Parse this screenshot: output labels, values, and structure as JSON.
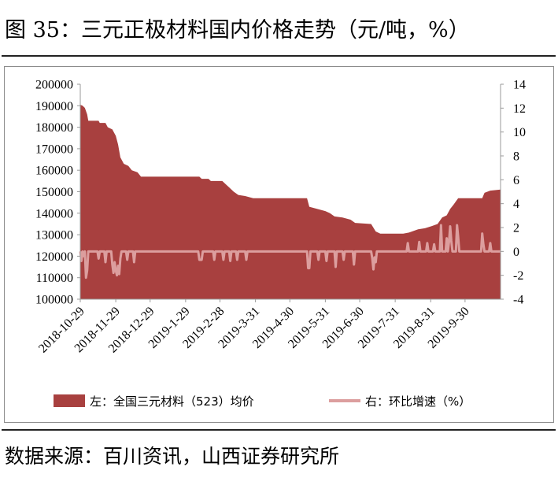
{
  "figure": {
    "title": "图 35：三元正极材料国内价格走势（元/吨，%）",
    "source": "数据来源：百川资讯，山西证券研究所"
  },
  "colors": {
    "price_fill": "#a8403f",
    "growth_line": "#dc9e9e",
    "axis": "#9a9a9a"
  },
  "chart_data": {
    "type": "area",
    "x_tick_labels": [
      "2018-10-29",
      "2018-11-29",
      "2018-12-29",
      "2019-1-29",
      "2019-2-28",
      "2019-3-31",
      "2019-4-30",
      "2019-5-31",
      "2019-6-30",
      "2019-7-31",
      "2019-8-31",
      "2019-9-30"
    ],
    "x_range": [
      "2018-10-29",
      "2019-10-31"
    ],
    "y_left": {
      "ylim": [
        100000,
        200000
      ],
      "ticks": [
        "100000",
        "110000",
        "120000",
        "130000",
        "140000",
        "150000",
        "160000",
        "170000",
        "180000",
        "190000",
        "200000"
      ]
    },
    "y_right": {
      "ylim": [
        -4,
        14
      ],
      "ticks": [
        "-4",
        "-2",
        "0",
        "2",
        "4",
        "6",
        "8",
        "10",
        "12",
        "14"
      ]
    },
    "legend_position": "bottom",
    "grid": false,
    "series": [
      {
        "name": "左：全国三元材料（523）均价",
        "axis": "left",
        "type": "area",
        "points": [
          [
            "2018-10-29",
            190500
          ],
          [
            "2018-10-31",
            190000
          ],
          [
            "2018-11-02",
            189000
          ],
          [
            "2018-11-04",
            186000
          ],
          [
            "2018-11-05",
            183000
          ],
          [
            "2018-11-14",
            183000
          ],
          [
            "2018-11-15",
            182000
          ],
          [
            "2018-11-20",
            182000
          ],
          [
            "2018-11-22",
            180000
          ],
          [
            "2018-11-26",
            179000
          ],
          [
            "2018-11-29",
            176000
          ],
          [
            "2018-12-01",
            172000
          ],
          [
            "2018-12-03",
            166000
          ],
          [
            "2018-12-06",
            163000
          ],
          [
            "2018-12-10",
            162000
          ],
          [
            "2018-12-13",
            160000
          ],
          [
            "2018-12-18",
            159000
          ],
          [
            "2018-12-21",
            157000
          ],
          [
            "2019-02-10",
            157000
          ],
          [
            "2019-02-12",
            156000
          ],
          [
            "2019-02-18",
            156000
          ],
          [
            "2019-02-20",
            155000
          ],
          [
            "2019-03-02",
            155000
          ],
          [
            "2019-03-04",
            154000
          ],
          [
            "2019-03-08",
            152000
          ],
          [
            "2019-03-12",
            150000
          ],
          [
            "2019-03-16",
            148500
          ],
          [
            "2019-03-22",
            148000
          ],
          [
            "2019-03-29",
            147000
          ],
          [
            "2019-05-15",
            147000
          ],
          [
            "2019-05-17",
            143000
          ],
          [
            "2019-05-24",
            142000
          ],
          [
            "2019-05-31",
            141000
          ],
          [
            "2019-06-04",
            140000
          ],
          [
            "2019-06-08",
            138500
          ],
          [
            "2019-06-15",
            138000
          ],
          [
            "2019-06-22",
            137000
          ],
          [
            "2019-06-26",
            135500
          ],
          [
            "2019-07-10",
            135000
          ],
          [
            "2019-07-14",
            131500
          ],
          [
            "2019-07-18",
            130500
          ],
          [
            "2019-08-07",
            130500
          ],
          [
            "2019-08-12",
            131000
          ],
          [
            "2019-08-20",
            132500
          ],
          [
            "2019-08-26",
            133000
          ],
          [
            "2019-09-01",
            134000
          ],
          [
            "2019-09-06",
            135000
          ],
          [
            "2019-09-10",
            138000
          ],
          [
            "2019-09-14",
            139000
          ],
          [
            "2019-09-17",
            142000
          ],
          [
            "2019-09-20",
            144000
          ],
          [
            "2019-09-24",
            147000
          ],
          [
            "2019-10-15",
            147000
          ],
          [
            "2019-10-17",
            149500
          ],
          [
            "2019-10-22",
            150500
          ],
          [
            "2019-10-31",
            151000
          ]
        ]
      },
      {
        "name": "右：环比增速（%）",
        "axis": "right",
        "type": "line",
        "points": [
          [
            "2018-10-29",
            0
          ],
          [
            "2018-10-30",
            -0.8
          ],
          [
            "2018-10-31",
            0
          ],
          [
            "2018-11-01",
            -0.4
          ],
          [
            "2018-11-02",
            0
          ],
          [
            "2018-11-03",
            -2.2
          ],
          [
            "2018-11-04",
            -1.6
          ],
          [
            "2018-11-05",
            0
          ],
          [
            "2018-11-13",
            0
          ],
          [
            "2018-11-14",
            -0.6
          ],
          [
            "2018-11-15",
            0
          ],
          [
            "2018-11-19",
            0
          ],
          [
            "2018-11-20",
            -0.9
          ],
          [
            "2018-11-21",
            0
          ],
          [
            "2018-11-25",
            0
          ],
          [
            "2018-11-26",
            -1.1
          ],
          [
            "2018-11-27",
            -1.8
          ],
          [
            "2018-11-28",
            -0.9
          ],
          [
            "2018-11-29",
            -1.6
          ],
          [
            "2018-11-30",
            -2.0
          ],
          [
            "2018-12-01",
            -1.2
          ],
          [
            "2018-12-02",
            -1.9
          ],
          [
            "2018-12-03",
            -0.6
          ],
          [
            "2018-12-04",
            0
          ],
          [
            "2018-12-08",
            0
          ],
          [
            "2018-12-09",
            -0.7
          ],
          [
            "2018-12-10",
            0
          ],
          [
            "2018-12-14",
            0
          ],
          [
            "2018-12-15",
            -0.9
          ],
          [
            "2018-12-16",
            0
          ],
          [
            "2019-02-09",
            0
          ],
          [
            "2019-02-10",
            -0.7
          ],
          [
            "2019-02-12",
            -0.7
          ],
          [
            "2019-02-13",
            0
          ],
          [
            "2019-02-22",
            0
          ],
          [
            "2019-02-23",
            -0.7
          ],
          [
            "2019-02-24",
            0
          ],
          [
            "2019-03-02",
            0
          ],
          [
            "2019-03-03",
            -0.7
          ],
          [
            "2019-03-04",
            0
          ],
          [
            "2019-03-08",
            0
          ],
          [
            "2019-03-09",
            -0.8
          ],
          [
            "2019-03-10",
            0
          ],
          [
            "2019-03-14",
            0
          ],
          [
            "2019-03-15",
            -0.7
          ],
          [
            "2019-03-16",
            0
          ],
          [
            "2019-03-22",
            0
          ],
          [
            "2019-03-23",
            -0.7
          ],
          [
            "2019-03-24",
            0
          ],
          [
            "2019-05-15",
            0
          ],
          [
            "2019-05-16",
            -1.4
          ],
          [
            "2019-05-17",
            -1.4
          ],
          [
            "2019-05-18",
            0
          ],
          [
            "2019-05-24",
            0
          ],
          [
            "2019-05-25",
            -0.7
          ],
          [
            "2019-05-26",
            0
          ],
          [
            "2019-05-31",
            0
          ],
          [
            "2019-06-01",
            -0.8
          ],
          [
            "2019-06-02",
            0
          ],
          [
            "2019-06-08",
            0
          ],
          [
            "2019-06-09",
            -1.3
          ],
          [
            "2019-06-10",
            0
          ],
          [
            "2019-06-15",
            0
          ],
          [
            "2019-06-16",
            -0.7
          ],
          [
            "2019-06-17",
            0
          ],
          [
            "2019-06-24",
            0
          ],
          [
            "2019-06-25",
            -1.1
          ],
          [
            "2019-06-26",
            0
          ],
          [
            "2019-07-10",
            0
          ],
          [
            "2019-07-11",
            -0.6
          ],
          [
            "2019-07-12",
            -1.5
          ],
          [
            "2019-07-13",
            -0.5
          ],
          [
            "2019-07-14",
            -0.9
          ],
          [
            "2019-07-15",
            0
          ],
          [
            "2019-08-10",
            0
          ],
          [
            "2019-08-11",
            0.7
          ],
          [
            "2019-08-12",
            0
          ],
          [
            "2019-08-20",
            0
          ],
          [
            "2019-08-21",
            0.8
          ],
          [
            "2019-08-22",
            0
          ],
          [
            "2019-08-27",
            0
          ],
          [
            "2019-08-28",
            0.7
          ],
          [
            "2019-08-29",
            0
          ],
          [
            "2019-09-02",
            0
          ],
          [
            "2019-09-03",
            0.6
          ],
          [
            "2019-09-04",
            0
          ],
          [
            "2019-09-08",
            0
          ],
          [
            "2019-09-09",
            2.2
          ],
          [
            "2019-09-10",
            0
          ],
          [
            "2019-09-13",
            0
          ],
          [
            "2019-09-14",
            1.1
          ],
          [
            "2019-09-15",
            0
          ],
          [
            "2019-09-16",
            0.8
          ],
          [
            "2019-09-17",
            2.1
          ],
          [
            "2019-09-18",
            0.9
          ],
          [
            "2019-09-19",
            0
          ],
          [
            "2019-09-22",
            0
          ],
          [
            "2019-09-23",
            2.2
          ],
          [
            "2019-09-24",
            1.2
          ],
          [
            "2019-09-25",
            0
          ],
          [
            "2019-10-14",
            0
          ],
          [
            "2019-10-15",
            1.5
          ],
          [
            "2019-10-16",
            0.6
          ],
          [
            "2019-10-17",
            0
          ],
          [
            "2019-10-21",
            0
          ],
          [
            "2019-10-22",
            0.7
          ],
          [
            "2019-10-23",
            0
          ],
          [
            "2019-10-31",
            0
          ]
        ]
      }
    ]
  }
}
